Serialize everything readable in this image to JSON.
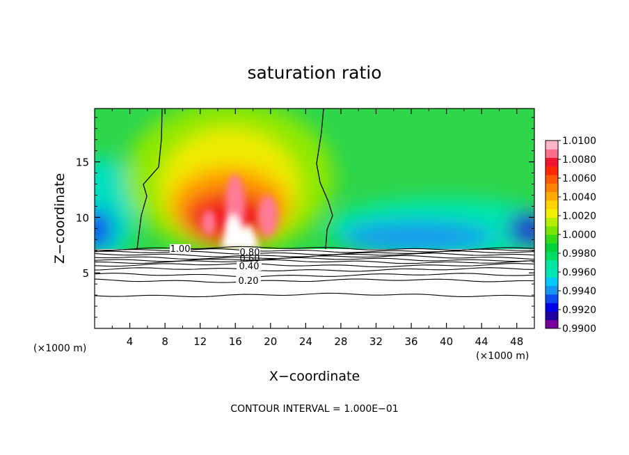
{
  "chart_data": {
    "type": "heatmap",
    "title": "saturation ratio",
    "xlabel": "X−coordinate",
    "ylabel": "Z−coordinate",
    "x_units_label": "(×1000 m)",
    "x_units_label_right": "(×1000 m)",
    "xlim": [
      0,
      50
    ],
    "ylim": [
      0,
      19.8
    ],
    "x_ticks": [
      4,
      8,
      12,
      16,
      20,
      24,
      28,
      32,
      36,
      40,
      44,
      48
    ],
    "x_tick_labels": [
      "4",
      "8",
      "12",
      "16",
      "20",
      "24",
      "28",
      "32",
      "36",
      "40",
      "44",
      "48"
    ],
    "y_ticks": [
      5,
      10,
      15
    ],
    "y_tick_labels": [
      "5",
      "10",
      "15"
    ],
    "grid": false,
    "colorbar": {
      "min": 0.99,
      "max": 1.01,
      "labels": [
        "1.0100",
        "1.0080",
        "1.0060",
        "1.0040",
        "1.0020",
        "1.0000",
        "0.9980",
        "0.9960",
        "0.9940",
        "0.9920",
        "0.9900"
      ],
      "colors": [
        "#7a00a0",
        "#2000a0",
        "#0000e6",
        "#0a4cf0",
        "#1496f0",
        "#00c8ff",
        "#00e6b4",
        "#00e6a0",
        "#00dc64",
        "#00d23c",
        "#32dc14",
        "#78e600",
        "#b4ee00",
        "#f0f000",
        "#ffd200",
        "#ffaa00",
        "#ff8200",
        "#ff5a00",
        "#ff2800",
        "#f01432",
        "#ff6e8c",
        "#ffb4c8"
      ]
    },
    "contour_labels": [
      {
        "text": "1.00",
        "value": 1.0
      },
      {
        "text": "0.80",
        "value": 0.8
      },
      {
        "text": "0.60",
        "value": 0.6
      },
      {
        "text": "0.40",
        "value": 0.4
      },
      {
        "text": "0.20",
        "value": 0.2
      }
    ],
    "contour_levels_z": [
      7.2,
      7.0,
      6.8,
      6.6,
      6.4,
      6.2,
      6.0,
      5.7,
      5.3,
      4.8,
      4.3,
      3.0
    ],
    "cloud_base_z": 7.2,
    "footer": "CONTOUR INTERVAL = 1.000E−01"
  }
}
